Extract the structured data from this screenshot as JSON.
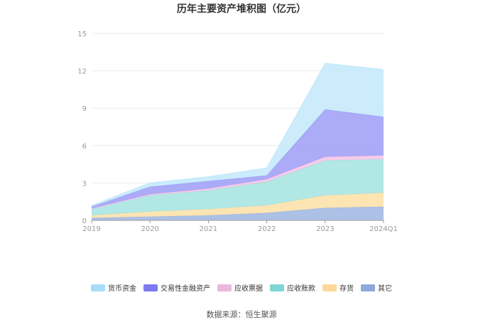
{
  "chart_data": {
    "type": "area",
    "stacked": true,
    "title": "历年主要资产堆积图（亿元）",
    "categories": [
      "2019",
      "2020",
      "2021",
      "2022",
      "2023",
      "2024Q1"
    ],
    "ylim": [
      0,
      15
    ],
    "yticks": [
      0,
      3,
      6,
      9,
      12,
      15
    ],
    "grid": true,
    "legend_position": "bottom",
    "series": [
      {
        "name": "其它",
        "color": "#9fb6e3",
        "values": [
          0.2,
          0.3,
          0.4,
          0.6,
          1.0,
          1.1
        ]
      },
      {
        "name": "存货",
        "color": "#fde0a6",
        "values": [
          0.2,
          0.4,
          0.5,
          0.6,
          1.0,
          1.1
        ]
      },
      {
        "name": "应收账款",
        "color": "#a3e3e0",
        "values": [
          0.5,
          1.3,
          1.5,
          1.9,
          2.8,
          2.7
        ]
      },
      {
        "name": "应收票据",
        "color": "#f3c3e6",
        "values": [
          0.05,
          0.1,
          0.15,
          0.2,
          0.3,
          0.3
        ]
      },
      {
        "name": "交易性金融资产",
        "color": "#9c9cf6",
        "values": [
          0.15,
          0.6,
          0.6,
          0.3,
          3.8,
          3.1
        ]
      },
      {
        "name": "货币资金",
        "color": "#c3e9fb",
        "values": [
          0.1,
          0.3,
          0.35,
          0.6,
          3.7,
          3.8
        ]
      }
    ],
    "source_text": "数据来源：恒生聚源"
  },
  "legend_colors": [
    "#a9ddf6",
    "#7b7bf0",
    "#ecb6de",
    "#7fd6d3",
    "#fdd89a",
    "#8ea9dc"
  ]
}
